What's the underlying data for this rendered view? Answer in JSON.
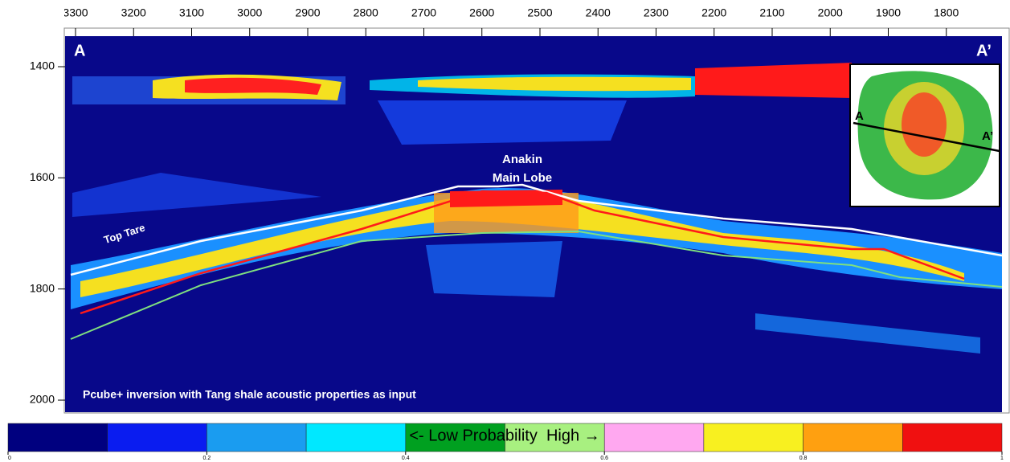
{
  "top_axis": {
    "ticks": [
      3300,
      3200,
      3100,
      3000,
      2900,
      2800,
      2700,
      2600,
      2500,
      2400,
      2300,
      2200,
      2100,
      2000,
      1900,
      1800
    ]
  },
  "left_axis": {
    "ticks": [
      1400,
      1600,
      1800,
      2000
    ]
  },
  "labels": {
    "a": "A",
    "a_prime": "A’",
    "anakin": "Anakin",
    "main_lobe": "Main Lobe",
    "top_tare": "Top Tare",
    "caption": "Pcube+ inversion with Tang shale acoustic properties as input"
  },
  "inset": {
    "a": "A",
    "a_prime": "A’"
  },
  "colorbar": {
    "label": "<- Low Probability  High →",
    "ticks": [
      0,
      0.2,
      0.4,
      0.6,
      0.8,
      1
    ]
  }
}
